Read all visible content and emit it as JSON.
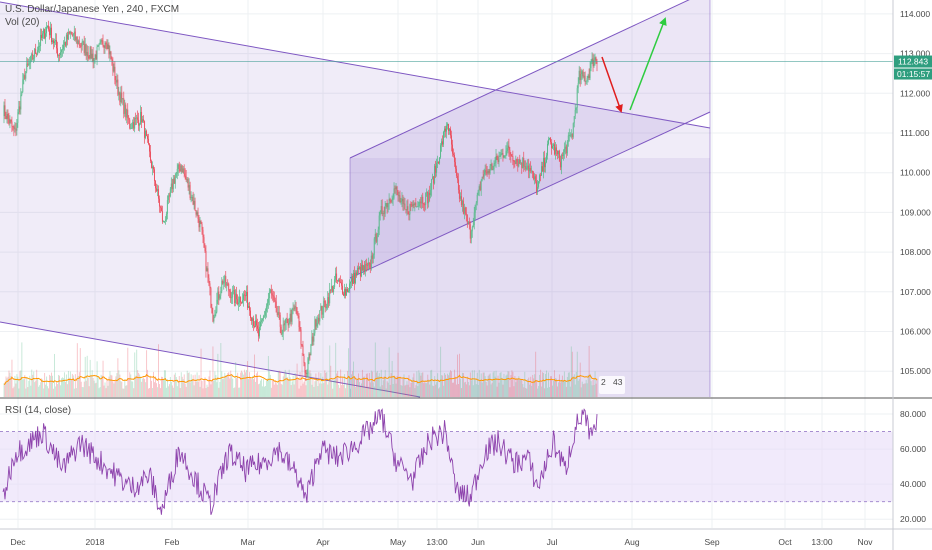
{
  "header": {
    "symbol": "U.S. Dollar/Japanese Yen",
    "interval": "240",
    "source": "FXCM",
    "volume_label": "Vol (20)",
    "rsi_label": "RSI (14, close)"
  },
  "price_tags": {
    "last": "112.843",
    "countdown": "01:15:57",
    "volume_values": [
      "2",
      "43"
    ]
  },
  "colors": {
    "up": "#53b987",
    "down": "#eb4d5c",
    "channel_fill": "#9575cd",
    "channel_line": "#7e57c2",
    "rsi_line": "#8e44ad",
    "rsi_band": "#e8dcf8",
    "arrow_down": "#e01e1e",
    "arrow_up": "#2ecc40",
    "price_line": "#4aa39a",
    "volume_ma": "#ff9800"
  },
  "chart_data": [
    {
      "type": "candlestick",
      "title": "U.S. Dollar/Japanese Yen, 240, FXCM",
      "x_ticks": [
        "Dec",
        "2018",
        "Feb",
        "Mar",
        "Apr",
        "May",
        "13:00",
        "Jun",
        "Jul",
        "Aug",
        "Sep",
        "Oct",
        "13:00",
        "Nov"
      ],
      "y_ticks": [
        114.0,
        113.0,
        112.0,
        111.0,
        110.0,
        109.0,
        108.0,
        107.0,
        106.0,
        105.0
      ],
      "ylim": [
        104.35,
        114.35
      ],
      "grid": true,
      "waypoints": [
        {
          "i": 0,
          "v": 111.6
        },
        {
          "i": 12,
          "v": 111.0
        },
        {
          "i": 22,
          "v": 112.5
        },
        {
          "i": 34,
          "v": 113.1
        },
        {
          "i": 45,
          "v": 113.7
        },
        {
          "i": 56,
          "v": 113.0
        },
        {
          "i": 68,
          "v": 113.5
        },
        {
          "i": 80,
          "v": 113.2
        },
        {
          "i": 92,
          "v": 112.9
        },
        {
          "i": 104,
          "v": 113.4
        },
        {
          "i": 116,
          "v": 112.1
        },
        {
          "i": 128,
          "v": 111.2
        },
        {
          "i": 140,
          "v": 111.4
        },
        {
          "i": 150,
          "v": 110.2
        },
        {
          "i": 162,
          "v": 108.7
        },
        {
          "i": 172,
          "v": 109.8
        },
        {
          "i": 180,
          "v": 110.2
        },
        {
          "i": 192,
          "v": 109.3
        },
        {
          "i": 200,
          "v": 108.6
        },
        {
          "i": 212,
          "v": 106.4
        },
        {
          "i": 222,
          "v": 107.3
        },
        {
          "i": 235,
          "v": 106.8
        },
        {
          "i": 245,
          "v": 106.9
        },
        {
          "i": 258,
          "v": 105.9
        },
        {
          "i": 270,
          "v": 107.0
        },
        {
          "i": 282,
          "v": 106.0
        },
        {
          "i": 296,
          "v": 106.6
        },
        {
          "i": 306,
          "v": 104.9
        },
        {
          "i": 316,
          "v": 106.3
        },
        {
          "i": 326,
          "v": 106.7
        },
        {
          "i": 336,
          "v": 107.3
        },
        {
          "i": 346,
          "v": 107.0
        },
        {
          "i": 358,
          "v": 107.5
        },
        {
          "i": 370,
          "v": 107.6
        },
        {
          "i": 382,
          "v": 109.0
        },
        {
          "i": 396,
          "v": 109.6
        },
        {
          "i": 406,
          "v": 109.0
        },
        {
          "i": 418,
          "v": 109.3
        },
        {
          "i": 430,
          "v": 109.4
        },
        {
          "i": 440,
          "v": 110.4
        },
        {
          "i": 449,
          "v": 111.3
        },
        {
          "i": 460,
          "v": 109.5
        },
        {
          "i": 472,
          "v": 108.5
        },
        {
          "i": 484,
          "v": 109.9
        },
        {
          "i": 496,
          "v": 110.2
        },
        {
          "i": 508,
          "v": 110.6
        },
        {
          "i": 520,
          "v": 110.3
        },
        {
          "i": 530,
          "v": 110.2
        },
        {
          "i": 540,
          "v": 109.6
        },
        {
          "i": 552,
          "v": 110.8
        },
        {
          "i": 563,
          "v": 110.3
        },
        {
          "i": 575,
          "v": 111.0
        },
        {
          "i": 582,
          "v": 112.4
        },
        {
          "i": 590,
          "v": 112.4
        },
        {
          "i": 597,
          "v": 112.9
        },
        {
          "i": 600,
          "v": 112.8
        }
      ],
      "volume": {
        "range": [
          0,
          3000
        ]
      }
    },
    {
      "type": "line",
      "title": "RSI (14, close)",
      "y_ticks": [
        80.0,
        60.0,
        40.0,
        20.0
      ],
      "ylim": [
        15,
        88
      ],
      "bands": [
        30,
        70
      ],
      "waypoints": [
        {
          "i": 0,
          "v": 32
        },
        {
          "i": 12,
          "v": 58
        },
        {
          "i": 24,
          "v": 62
        },
        {
          "i": 40,
          "v": 70
        },
        {
          "i": 60,
          "v": 48
        },
        {
          "i": 78,
          "v": 64
        },
        {
          "i": 96,
          "v": 54
        },
        {
          "i": 112,
          "v": 46
        },
        {
          "i": 130,
          "v": 38
        },
        {
          "i": 148,
          "v": 45
        },
        {
          "i": 160,
          "v": 24
        },
        {
          "i": 178,
          "v": 60
        },
        {
          "i": 195,
          "v": 42
        },
        {
          "i": 210,
          "v": 28
        },
        {
          "i": 228,
          "v": 58
        },
        {
          "i": 245,
          "v": 48
        },
        {
          "i": 262,
          "v": 52
        },
        {
          "i": 278,
          "v": 60
        },
        {
          "i": 298,
          "v": 44
        },
        {
          "i": 306,
          "v": 31
        },
        {
          "i": 320,
          "v": 60
        },
        {
          "i": 338,
          "v": 55
        },
        {
          "i": 355,
          "v": 62
        },
        {
          "i": 372,
          "v": 72
        },
        {
          "i": 382,
          "v": 79
        },
        {
          "i": 398,
          "v": 52
        },
        {
          "i": 414,
          "v": 43
        },
        {
          "i": 432,
          "v": 66
        },
        {
          "i": 447,
          "v": 70
        },
        {
          "i": 458,
          "v": 36
        },
        {
          "i": 472,
          "v": 32
        },
        {
          "i": 486,
          "v": 58
        },
        {
          "i": 500,
          "v": 64
        },
        {
          "i": 516,
          "v": 52
        },
        {
          "i": 530,
          "v": 55
        },
        {
          "i": 540,
          "v": 38
        },
        {
          "i": 556,
          "v": 64
        },
        {
          "i": 568,
          "v": 48
        },
        {
          "i": 578,
          "v": 72
        },
        {
          "i": 586,
          "v": 80
        },
        {
          "i": 594,
          "v": 66
        },
        {
          "i": 600,
          "v": 74
        }
      ]
    }
  ]
}
